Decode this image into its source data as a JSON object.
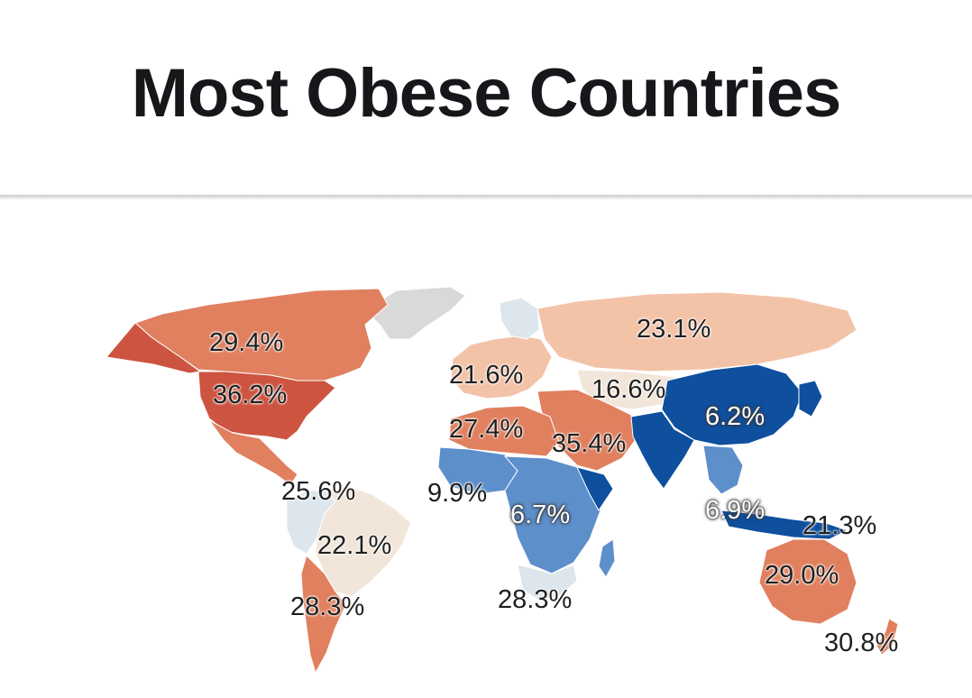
{
  "title": "Most Obese Countries",
  "colors": {
    "high": "#cd5440",
    "mid_high": "#e0805f",
    "mid": "#f3c3a8",
    "low_mid": "#f2e6da",
    "neutral": "#dde6ec",
    "low": "#5d8fcb",
    "lowest": "#0e4f9e",
    "no_data": "#d9d9d9"
  },
  "labels": [
    {
      "id": "canada",
      "text": "29.4%"
    },
    {
      "id": "usa",
      "text": "36.2%"
    },
    {
      "id": "central-america",
      "text": "25.6%"
    },
    {
      "id": "brazil",
      "text": "22.1%"
    },
    {
      "id": "argentina",
      "text": "28.3%"
    },
    {
      "id": "europe",
      "text": "21.6%"
    },
    {
      "id": "russia",
      "text": "23.1%"
    },
    {
      "id": "north-africa",
      "text": "27.4%"
    },
    {
      "id": "central-asia",
      "text": "16.6%"
    },
    {
      "id": "middle-east",
      "text": "35.4%"
    },
    {
      "id": "china",
      "text": "6.2%"
    },
    {
      "id": "west-africa",
      "text": "9.9%"
    },
    {
      "id": "central-africa",
      "text": "6.7%"
    },
    {
      "id": "southeast-asia",
      "text": "6.9%"
    },
    {
      "id": "papua-new-guinea",
      "text": "21.3%"
    },
    {
      "id": "southern-africa",
      "text": "28.3%"
    },
    {
      "id": "australia",
      "text": "29.0%"
    },
    {
      "id": "new-zealand",
      "text": "30.8%"
    }
  ]
}
